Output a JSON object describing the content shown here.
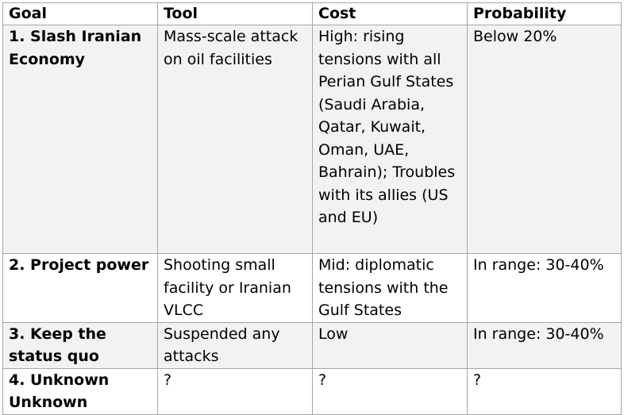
{
  "table": {
    "headers": {
      "goal": "Goal",
      "tool": "Tool",
      "cost": "Cost",
      "probability": "Probability"
    },
    "rows": [
      {
        "goal": "1. Slash Iranian Economy",
        "tool": "Mass-scale attack on oil facilities",
        "cost": "High: rising tensions with all Perian Gulf States (Saudi Arabia, Qatar, Kuwait, Oman, UAE, Bahrain); Troubles with its allies (US and EU)",
        "probability": "Below 20%"
      },
      {
        "goal": "2. Project power",
        "tool": "Shooting small facility or Iranian VLCC",
        "cost": "Mid: diplomatic tensions with the Gulf States",
        "probability": "In range: 30-40%"
      },
      {
        "goal": "3. Keep the status quo",
        "tool": "Suspended any attacks",
        "cost": "Low",
        "probability": "In range: 30-40%"
      },
      {
        "goal": "4. Unknown Unknown",
        "tool": "?",
        "cost": "?",
        "probability": "?"
      }
    ]
  }
}
